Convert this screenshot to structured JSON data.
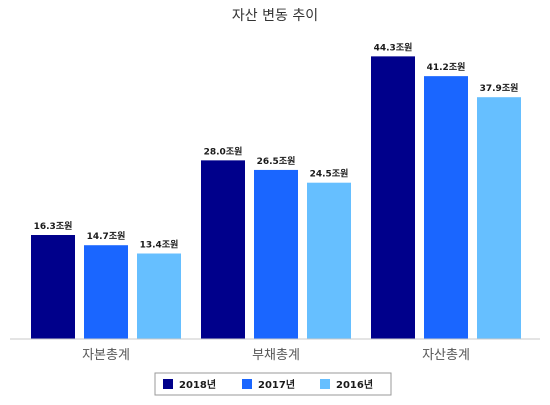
{
  "chart_data": {
    "type": "bar",
    "title": "자산 변동 추이",
    "categories": [
      "자본총계",
      "부채총계",
      "자산총계"
    ],
    "series": [
      {
        "name": "2018년",
        "color": "#00008b",
        "values": [
          16.3,
          28.0,
          44.3
        ],
        "labels": [
          "16.3조원",
          "28.0조원",
          "44.3조원"
        ]
      },
      {
        "name": "2017년",
        "color": "#1a66ff",
        "values": [
          14.7,
          26.5,
          41.2
        ],
        "labels": [
          "14.7조원",
          "26.5조원",
          "41.2조원"
        ]
      },
      {
        "name": "2016년",
        "color": "#66bfff",
        "values": [
          13.4,
          24.5,
          37.9
        ],
        "labels": [
          "13.4조원",
          "24.5조원",
          "37.9조원"
        ]
      }
    ],
    "xlabel": "",
    "ylabel": "",
    "ylim": [
      0,
      50
    ],
    "grid": false,
    "legend_position": "bottom"
  }
}
